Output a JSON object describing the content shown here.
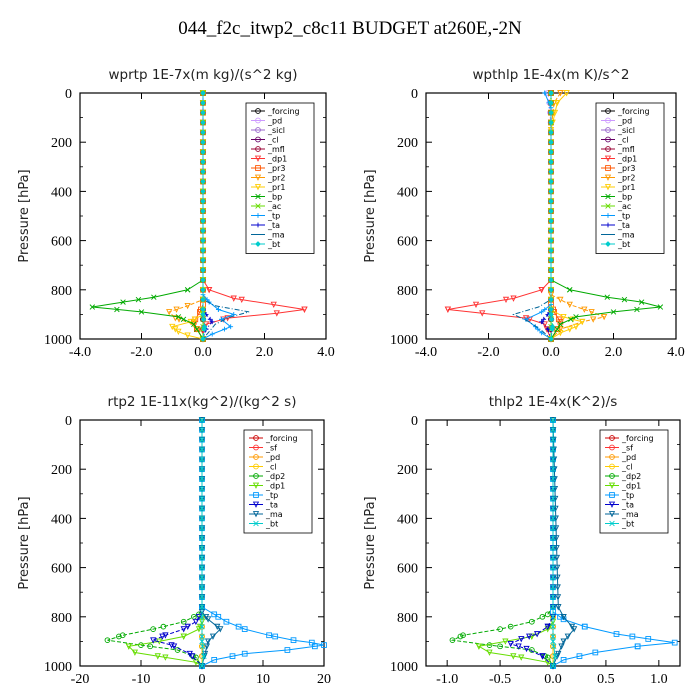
{
  "title": "044_f2c_itwp2_c8c11  BUDGET at260E,-2N",
  "chart_data": [
    {
      "type": "line",
      "title": "wprtp  1E-7x(m kg)/(s^2 kg)",
      "xlabel": "",
      "ylabel": "Pressure [hPa]",
      "xlim": [
        -4.0,
        4.0
      ],
      "ylim": [
        1000,
        0
      ],
      "xticks": [
        "-4.0",
        "-2.0",
        "0.0",
        "2.0",
        "4.0"
      ],
      "yticks": [
        "0",
        "200",
        "400",
        "600",
        "800",
        "1000"
      ],
      "legend": [
        "_forcing",
        "_pd",
        "_sicl",
        "_cl",
        "_mfl",
        "_dp1",
        "_pr3",
        "_pr2",
        "_pr1",
        "_bp",
        "_ac",
        "_tp",
        "_ta",
        "_ma",
        "_bt"
      ],
      "series": [
        {
          "name": "_forcing",
          "color": "#000000",
          "x": [
            0,
            0
          ],
          "y": [
            0,
            1000
          ]
        },
        {
          "name": "_pd",
          "color": "#cc99ff",
          "x": [
            0,
            0
          ],
          "y": [
            0,
            1000
          ]
        },
        {
          "name": "_sicl",
          "color": "#9966cc",
          "x": [
            0,
            0
          ],
          "y": [
            0,
            1000
          ]
        },
        {
          "name": "_cl",
          "color": "#660066",
          "x": [
            0,
            0
          ],
          "y": [
            0,
            1000
          ]
        },
        {
          "name": "_mfl",
          "color": "#990033",
          "x": [
            0,
            0
          ],
          "y": [
            0,
            1000
          ]
        },
        {
          "name": "_dp1",
          "color": "#ff3333",
          "x": [
            0,
            0,
            0.2,
            1.0,
            2.3,
            3.3,
            2.4,
            0.8,
            0.1,
            0,
            0
          ],
          "y": [
            0,
            760,
            800,
            835,
            860,
            880,
            895,
            915,
            940,
            970,
            1000
          ]
        },
        {
          "name": "_pr3",
          "color": "#ff5500",
          "x": [
            0,
            0,
            -0.1,
            -0.3,
            -0.2,
            0
          ],
          "y": [
            0,
            860,
            890,
            930,
            960,
            1000
          ]
        },
        {
          "name": "_pr2",
          "color": "#ff9900",
          "x": [
            0,
            0,
            -0.5,
            -1.1,
            -0.9,
            -0.3,
            0
          ],
          "y": [
            0,
            840,
            865,
            890,
            915,
            940,
            1000
          ]
        },
        {
          "name": "_pr1",
          "color": "#ffcc00",
          "x": [
            0,
            0,
            -0.4,
            -1.0,
            -0.8,
            -0.5,
            0
          ],
          "y": [
            0,
            900,
            930,
            950,
            970,
            985,
            1000
          ]
        },
        {
          "name": "_bp",
          "color": "#00aa00",
          "x": [
            0,
            0,
            -0.5,
            -1.6,
            -2.6,
            -3.6,
            -2.0,
            -0.8,
            -0.3,
            0
          ],
          "y": [
            0,
            760,
            800,
            830,
            850,
            870,
            890,
            910,
            940,
            1000
          ]
        },
        {
          "name": "_ac",
          "color": "#66dd00",
          "x": [
            0,
            0,
            0,
            0
          ],
          "y": [
            0,
            900,
            950,
            1000
          ]
        },
        {
          "name": "_tp",
          "color": "#0099ff",
          "x": [
            0,
            0,
            0.2,
            0.5,
            1.0,
            0.6,
            0.9,
            0.3,
            0
          ],
          "y": [
            0,
            820,
            850,
            880,
            900,
            920,
            950,
            980,
            1000
          ]
        },
        {
          "name": "_ta",
          "color": "#0000cc",
          "x": [
            0,
            0,
            0.1,
            0.3,
            0.1,
            0
          ],
          "y": [
            0,
            880,
            900,
            930,
            960,
            1000
          ]
        },
        {
          "name": "_ma",
          "color": "#006699",
          "x": [
            0,
            0,
            0.4,
            1.5,
            0.9,
            0.4,
            0.2,
            0
          ],
          "y": [
            0,
            840,
            865,
            890,
            910,
            940,
            970,
            1000
          ]
        },
        {
          "name": "_bt",
          "color": "#00cccc",
          "x": [
            0,
            0,
            0.05,
            0
          ],
          "y": [
            0,
            900,
            950,
            1000
          ]
        }
      ]
    },
    {
      "type": "line",
      "title": "wpthlp  1E-4x(m K)/s^2",
      "xlabel": "",
      "ylabel": "Pressure [hPa]",
      "xlim": [
        -4.0,
        4.0
      ],
      "ylim": [
        1000,
        0
      ],
      "xticks": [
        "-4.0",
        "-2.0",
        "0.0",
        "2.0",
        "4.0"
      ],
      "yticks": [
        "0",
        "200",
        "400",
        "600",
        "800",
        "1000"
      ],
      "legend": [
        "_forcing",
        "_pd",
        "_sicl",
        "_cl",
        "_mfl",
        "_dp1",
        "_pr3",
        "_pr2",
        "_pr1",
        "_bp",
        "_ac",
        "_tp",
        "_ta",
        "_ma",
        "_bt"
      ],
      "series": [
        {
          "name": "_forcing",
          "color": "#000000",
          "x": [
            0,
            0
          ],
          "y": [
            0,
            1000
          ]
        },
        {
          "name": "_pd",
          "color": "#cc99ff",
          "x": [
            -0.1,
            -0.05,
            0,
            0
          ],
          "y": [
            0,
            40,
            150,
            1000
          ]
        },
        {
          "name": "_sicl",
          "color": "#9966cc",
          "x": [
            0,
            0
          ],
          "y": [
            0,
            1000
          ]
        },
        {
          "name": "_cl",
          "color": "#660066",
          "x": [
            0,
            0
          ],
          "y": [
            0,
            1000
          ]
        },
        {
          "name": "_mfl",
          "color": "#990033",
          "x": [
            0,
            0
          ],
          "y": [
            0,
            1000
          ]
        },
        {
          "name": "_dp1",
          "color": "#ff3333",
          "x": [
            0,
            0,
            -0.3,
            -1.2,
            -2.4,
            -3.3,
            -2.2,
            -0.8,
            -0.2,
            0
          ],
          "y": [
            0,
            760,
            800,
            835,
            860,
            880,
            895,
            915,
            940,
            1000
          ]
        },
        {
          "name": "_pr3",
          "color": "#ff5500",
          "x": [
            0,
            0,
            0.1,
            0.3,
            0.2,
            0
          ],
          "y": [
            0,
            860,
            890,
            930,
            960,
            1000
          ]
        },
        {
          "name": "_pr2",
          "color": "#ff9900",
          "x": [
            0.3,
            0.1,
            0,
            0,
            0.6,
            1.3,
            1.7,
            1.0,
            0.3,
            0
          ],
          "y": [
            0,
            40,
            150,
            820,
            860,
            890,
            910,
            930,
            960,
            1000
          ]
        },
        {
          "name": "_pr1",
          "color": "#ffcc00",
          "x": [
            0.5,
            0.2,
            0,
            0,
            0.4,
            1.0,
            0.8,
            0.3,
            0
          ],
          "y": [
            0,
            40,
            150,
            880,
            910,
            930,
            950,
            975,
            1000
          ]
        },
        {
          "name": "_bp",
          "color": "#00aa00",
          "x": [
            0,
            0,
            0.6,
            1.8,
            2.9,
            3.5,
            2.0,
            0.8,
            0.3,
            0
          ],
          "y": [
            0,
            760,
            800,
            830,
            850,
            870,
            890,
            910,
            940,
            1000
          ]
        },
        {
          "name": "_ac",
          "color": "#66dd00",
          "x": [
            0,
            0,
            0,
            0
          ],
          "y": [
            0,
            900,
            950,
            1000
          ]
        },
        {
          "name": "_tp",
          "color": "#0099ff",
          "x": [
            -0.2,
            0,
            0,
            -0.3,
            -0.8,
            -0.5,
            -0.3,
            0
          ],
          "y": [
            0,
            60,
            860,
            890,
            920,
            950,
            975,
            1000
          ]
        },
        {
          "name": "_ta",
          "color": "#0000cc",
          "x": [
            0,
            0,
            -0.1,
            -0.3,
            -0.1,
            0
          ],
          "y": [
            0,
            880,
            900,
            930,
            960,
            1000
          ]
        },
        {
          "name": "_ma",
          "color": "#006699",
          "x": [
            0,
            0,
            -0.4,
            -1.2,
            -0.7,
            -0.3,
            0
          ],
          "y": [
            0,
            840,
            870,
            900,
            930,
            965,
            1000
          ]
        },
        {
          "name": "_bt",
          "color": "#00cccc",
          "x": [
            0,
            0,
            0.05,
            0
          ],
          "y": [
            0,
            900,
            950,
            1000
          ]
        }
      ]
    },
    {
      "type": "line",
      "title": "rtp2  1E-11x(kg^2)/(kg^2 s)",
      "xlabel": "",
      "ylabel": "Pressure [hPa]",
      "xlim": [
        -20,
        20
      ],
      "ylim": [
        1000,
        0
      ],
      "xticks": [
        "-20",
        "-10",
        "0",
        "10",
        "20"
      ],
      "yticks": [
        "0",
        "200",
        "400",
        "600",
        "800",
        "1000"
      ],
      "legend": [
        "_forcing",
        "_sf",
        "_pd",
        "_cl",
        "_dp2",
        "_dp1",
        "_tp",
        "_ta",
        "_ma",
        "_bt"
      ],
      "series": [
        {
          "name": "_forcing",
          "color": "#cc0000",
          "x": [
            0,
            0
          ],
          "y": [
            0,
            1000
          ]
        },
        {
          "name": "_sf",
          "color": "#ff3333",
          "x": [
            0,
            0
          ],
          "y": [
            0,
            1000
          ]
        },
        {
          "name": "_pd",
          "color": "#ff9900",
          "x": [
            0,
            0
          ],
          "y": [
            0,
            1000
          ]
        },
        {
          "name": "_cl",
          "color": "#ffcc00",
          "x": [
            0,
            0
          ],
          "y": [
            0,
            1000
          ]
        },
        {
          "name": "_dp2",
          "color": "#00aa00",
          "x": [
            0,
            0,
            -0.5,
            -3,
            -8,
            -13,
            -15.5,
            -10,
            -4,
            -1,
            0
          ],
          "y": [
            0,
            760,
            790,
            820,
            850,
            875,
            895,
            915,
            935,
            965,
            1000
          ]
        },
        {
          "name": "_dp1",
          "color": "#66dd00",
          "x": [
            0,
            0,
            -0.5,
            -3,
            -7,
            -12,
            -11,
            -6,
            -1,
            0
          ],
          "y": [
            0,
            820,
            850,
            880,
            900,
            920,
            945,
            965,
            985,
            1000
          ]
        },
        {
          "name": "_tp",
          "color": "#0099ff",
          "x": [
            0,
            0,
            2,
            4,
            7,
            11,
            15,
            18,
            20,
            14,
            7,
            2,
            0
          ],
          "y": [
            0,
            760,
            790,
            820,
            850,
            875,
            895,
            905,
            915,
            935,
            950,
            975,
            1000
          ]
        },
        {
          "name": "_ta",
          "color": "#0000cc",
          "x": [
            0,
            0,
            -1,
            -3,
            -6,
            -8,
            -5,
            -2,
            0
          ],
          "y": [
            0,
            780,
            820,
            850,
            875,
            895,
            915,
            950,
            1000
          ]
        },
        {
          "name": "_ma",
          "color": "#006699",
          "x": [
            0,
            0,
            1,
            3,
            1,
            0.5,
            0
          ],
          "y": [
            0,
            780,
            810,
            850,
            900,
            950,
            1000
          ]
        },
        {
          "name": "_bt",
          "color": "#00cccc",
          "x": [
            0,
            0,
            0.3,
            0
          ],
          "y": [
            0,
            900,
            960,
            1000
          ]
        }
      ]
    },
    {
      "type": "line",
      "title": "thlp2  1E-4x(K^2)/s",
      "xlabel": "",
      "ylabel": "Pressure [hPa]",
      "xlim": [
        -1.2,
        1.2
      ],
      "ylim": [
        1000,
        0
      ],
      "xticks": [
        "-1.0",
        "-0.5",
        "0.0",
        "0.5",
        "1.0"
      ],
      "yticks": [
        "0",
        "200",
        "400",
        "600",
        "800",
        "1000"
      ],
      "legend": [
        "_forcing",
        "_sf",
        "_pd",
        "_cl",
        "_dp2",
        "_dp1",
        "_tp",
        "_ta",
        "_ma",
        "_bt"
      ],
      "series": [
        {
          "name": "_forcing",
          "color": "#cc0000",
          "x": [
            0,
            0
          ],
          "y": [
            0,
            1000
          ]
        },
        {
          "name": "_sf",
          "color": "#ff3333",
          "x": [
            0,
            0
          ],
          "y": [
            0,
            1000
          ]
        },
        {
          "name": "_pd",
          "color": "#ff9900",
          "x": [
            0,
            0
          ],
          "y": [
            0,
            1000
          ]
        },
        {
          "name": "_cl",
          "color": "#ffcc00",
          "x": [
            0,
            0
          ],
          "y": [
            0,
            1000
          ]
        },
        {
          "name": "_dp2",
          "color": "#00aa00",
          "x": [
            0,
            0,
            -0.05,
            -0.2,
            -0.5,
            -0.85,
            -0.95,
            -0.6,
            -0.2,
            -0.05,
            0
          ],
          "y": [
            0,
            760,
            790,
            820,
            850,
            875,
            895,
            915,
            935,
            965,
            1000
          ]
        },
        {
          "name": "_dp1",
          "color": "#66dd00",
          "x": [
            0,
            0,
            -0.05,
            -0.2,
            -0.45,
            -0.7,
            -0.6,
            -0.3,
            -0.05,
            0
          ],
          "y": [
            0,
            820,
            850,
            880,
            900,
            920,
            945,
            965,
            985,
            1000
          ]
        },
        {
          "name": "_tp",
          "color": "#0099ff",
          "x": [
            0,
            0,
            0.1,
            0.3,
            0.6,
            0.9,
            1.15,
            0.8,
            0.4,
            0.1,
            0
          ],
          "y": [
            0,
            780,
            810,
            840,
            870,
            890,
            905,
            920,
            945,
            975,
            1000
          ]
        },
        {
          "name": "_ta",
          "color": "#0000cc",
          "x": [
            0,
            0,
            -0.05,
            -0.15,
            -0.3,
            -0.4,
            -0.25,
            -0.1,
            0
          ],
          "y": [
            0,
            800,
            840,
            870,
            890,
            910,
            930,
            960,
            1000
          ]
        },
        {
          "name": "_ma",
          "color": "#006699",
          "x": [
            0,
            0.05,
            0.1,
            0.2,
            0.1,
            0.05,
            0
          ],
          "y": [
            0,
            760,
            800,
            850,
            900,
            950,
            1000
          ]
        },
        {
          "name": "_bt",
          "color": "#00cccc",
          "x": [
            0,
            0,
            0.02,
            0
          ],
          "y": [
            0,
            900,
            960,
            1000
          ]
        }
      ]
    }
  ]
}
